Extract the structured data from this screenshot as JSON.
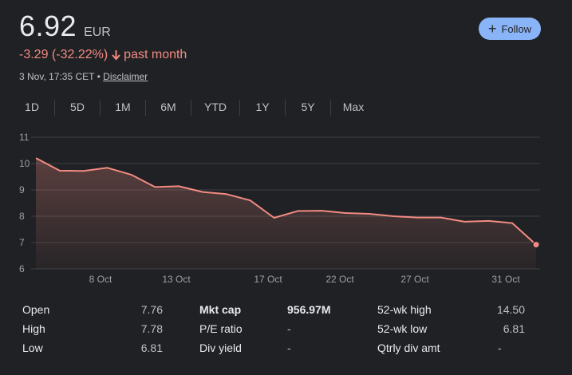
{
  "quote": {
    "price": "6.92",
    "currency": "EUR",
    "change": "-3.29 (-32.22%)",
    "period": "past month",
    "timestamp": "3 Nov, 17:35 CET",
    "separator": "•",
    "disclaimer": "Disclaimer"
  },
  "follow_button": {
    "icon": "plus-icon",
    "label": "Follow"
  },
  "tabs": [
    {
      "label": "1D",
      "active": false
    },
    {
      "label": "5D",
      "active": false
    },
    {
      "label": "1M",
      "active": true
    },
    {
      "label": "6M",
      "active": false
    },
    {
      "label": "YTD",
      "active": false
    },
    {
      "label": "1Y",
      "active": false
    },
    {
      "label": "5Y",
      "active": false
    },
    {
      "label": "Max",
      "active": false
    }
  ],
  "colors": {
    "background": "#202124",
    "line": "#f28b82",
    "accent": "#8ab4f8",
    "grid": "#3c4043"
  },
  "chart_data": {
    "type": "area",
    "y_ticks": [
      "11",
      "10",
      "9",
      "8",
      "7",
      "6"
    ],
    "ylim": [
      6,
      11
    ],
    "x_ticks": [
      "8 Oct",
      "13 Oct",
      "17 Oct",
      "22 Oct",
      "27 Oct",
      "31 Oct"
    ],
    "series": [
      {
        "values": [
          10.21,
          9.73,
          9.72,
          9.84,
          9.58,
          9.11,
          9.14,
          8.92,
          8.84,
          8.6,
          7.94,
          8.2,
          8.21,
          8.12,
          8.09,
          8.0,
          7.95,
          7.95,
          7.79,
          7.82,
          7.74,
          6.92
        ]
      }
    ],
    "grid": true
  },
  "stats": [
    {
      "col1_label": "Open",
      "col1_value": "7.76",
      "col2_label": "Mkt cap",
      "col2_value": "956.97M",
      "col3_label": "52-wk high",
      "col3_value": "14.50"
    },
    {
      "col1_label": "High",
      "col1_value": "7.78",
      "col2_label": "P/E ratio",
      "col2_value": "-",
      "col3_label": "52-wk low",
      "col3_value": "6.81"
    },
    {
      "col1_label": "Low",
      "col1_value": "6.81",
      "col2_label": "Div yield",
      "col2_value": "-",
      "col3_label": "Qtrly div amt",
      "col3_value": "-"
    }
  ]
}
